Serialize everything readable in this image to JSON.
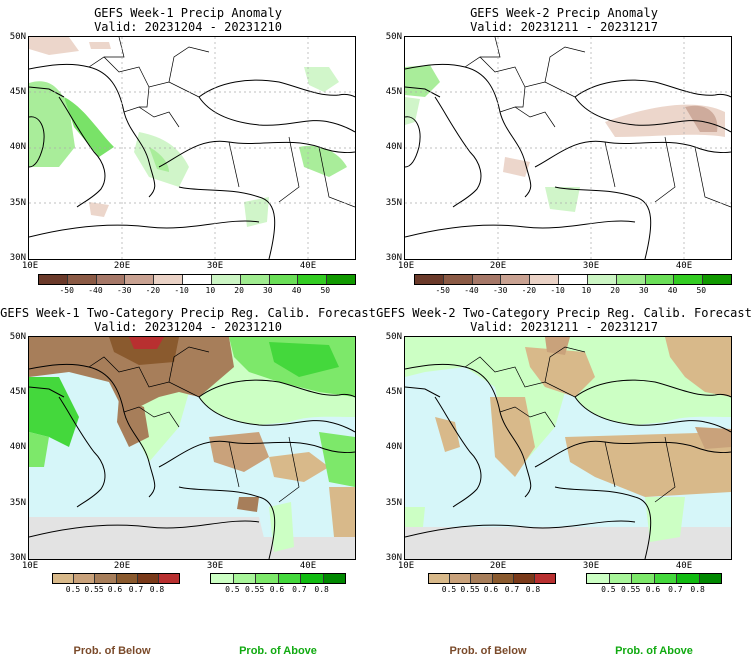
{
  "panels": [
    {
      "title": "GEFS Week-1 Precip Anomaly",
      "valid": "Valid: 20231204 - 20231210"
    },
    {
      "title": "GEFS Week-2 Precip Anomaly",
      "valid": "Valid: 20231211 - 20231217"
    },
    {
      "title": "GEFS Week-1 Two-Category Precip Reg. Calib. Forecast",
      "valid": "Valid: 20231204 - 20231210"
    },
    {
      "title": "GEFS Week-2 Two-Category Precip Reg. Calib. Forecast",
      "valid": "Valid: 20231211 - 20231217"
    }
  ],
  "lat_labels": [
    "50N",
    "45N",
    "40N",
    "35N",
    "30N"
  ],
  "lon_labels": [
    "10E",
    "20E",
    "30E",
    "40E"
  ],
  "anomaly_scale": {
    "ticks": [
      "-50",
      "-40",
      "-30",
      "-20",
      "-10",
      "10",
      "20",
      "30",
      "40",
      "50"
    ],
    "colors": [
      "#6b3a2a",
      "#8b5a45",
      "#a67868",
      "#c9a292",
      "#ead2c6",
      "#ffffff",
      "#ccf5c4",
      "#a0ec90",
      "#6bdf58",
      "#33cc22",
      "#119900"
    ]
  },
  "below_scale": {
    "ticks": [
      "0.5",
      "0.55",
      "0.6",
      "0.7",
      "0.8"
    ],
    "colors": [
      "#d8b98a",
      "#c9a27b",
      "#a77e5a",
      "#8a5a2e",
      "#7a3a1a",
      "#b83030"
    ]
  },
  "above_scale": {
    "ticks": [
      "0.5",
      "0.55",
      "0.6",
      "0.7",
      "0.8"
    ],
    "colors": [
      "#ccffc4",
      "#a8f59a",
      "#7de86a",
      "#44d83c",
      "#11bb11",
      "#008800"
    ]
  },
  "prob_labels": {
    "below": "Prob. of Below",
    "above": "Prob. of Above",
    "below_color": "#7a4a2a",
    "above_color": "#11aa11"
  },
  "map_colors": {
    "sea": "#d6f6f9",
    "no_data": "#e3e3e3",
    "land_neutral": "#ffffff"
  }
}
